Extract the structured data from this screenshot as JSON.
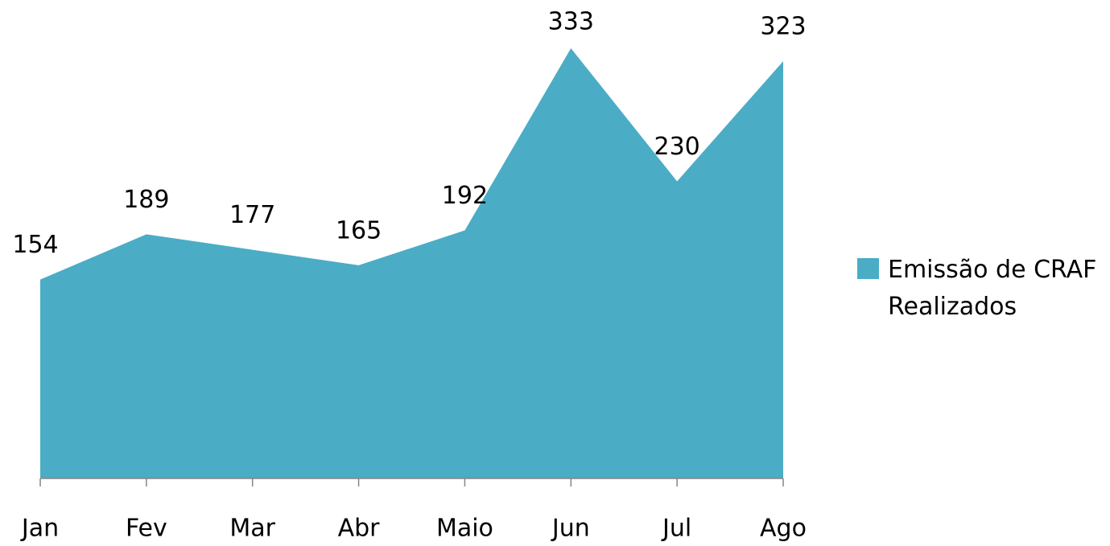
{
  "chart_data": {
    "type": "area",
    "categories": [
      "Jan",
      "Fev",
      "Mar",
      "Abr",
      "Maio",
      "Jun",
      "Jul",
      "Ago"
    ],
    "series": [
      {
        "name": "Emissão de CRAF Realizados",
        "color": "#4bacc6",
        "values": [
          154,
          189,
          177,
          165,
          192,
          333,
          230,
          323
        ]
      }
    ],
    "legend": "right"
  }
}
